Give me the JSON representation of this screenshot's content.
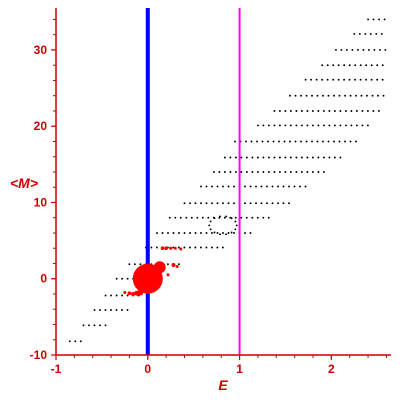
{
  "chart_data": {
    "type": "scatter",
    "title": "",
    "xlabel": "E",
    "ylabel": "<M>",
    "xlim": [
      -1,
      2.65
    ],
    "ylim": [
      -10,
      35.5
    ],
    "x_ticks": [
      -1,
      0,
      1,
      2
    ],
    "y_ticks": [
      -10,
      0,
      10,
      20,
      30
    ],
    "x_tick_labels": [
      "-1",
      "0",
      "1",
      "2"
    ],
    "y_tick_labels": [
      "-10",
      "0",
      "10",
      "20",
      "30"
    ],
    "grid": false,
    "legend": "none",
    "colors": {
      "axis": "#cc0000",
      "points": "#000000",
      "highlight": "#ff0000",
      "line_e0": "#0000ff",
      "line_e1": "#ff00ff"
    },
    "vertical_lines": [
      {
        "x": 0,
        "color": "#0000ff"
      },
      {
        "x": 1,
        "color": "#ff00ff"
      }
    ],
    "black_rows": [
      {
        "y": -8.2,
        "x": [
          -0.85,
          -0.72
        ]
      },
      {
        "y": -6.1,
        "x": [
          -0.7,
          -0.45
        ]
      },
      {
        "y": -4.1,
        "x": [
          -0.58,
          -0.2
        ]
      },
      {
        "y": -2.2,
        "x": [
          -0.46,
          -0.05
        ]
      },
      {
        "y": 0.0,
        "x": [
          -0.34,
          0.1
        ]
      },
      {
        "y": 1.9,
        "x": [
          -0.2,
          0.38
        ]
      },
      {
        "y": 4.1,
        "x": [
          -0.02,
          0.85
        ]
      },
      {
        "y": 6.0,
        "x": [
          0.1,
          1.15
        ]
      },
      {
        "y": 8.0,
        "x": [
          0.24,
          1.35
        ]
      },
      {
        "y": 9.9,
        "x": [
          0.4,
          1.55
        ]
      },
      {
        "y": 12.1,
        "x": [
          0.58,
          1.75
        ]
      },
      {
        "y": 14.0,
        "x": [
          0.72,
          1.95
        ]
      },
      {
        "y": 15.9,
        "x": [
          0.84,
          2.15
        ]
      },
      {
        "y": 18.0,
        "x": [
          0.95,
          2.3
        ]
      },
      {
        "y": 20.1,
        "x": [
          1.2,
          2.45
        ]
      },
      {
        "y": 22.0,
        "x": [
          1.38,
          2.55
        ]
      },
      {
        "y": 24.0,
        "x": [
          1.55,
          2.6
        ]
      },
      {
        "y": 26.1,
        "x": [
          1.72,
          2.6
        ]
      },
      {
        "y": 28.0,
        "x": [
          1.9,
          2.6
        ]
      },
      {
        "y": 30.0,
        "x": [
          2.05,
          2.6
        ]
      },
      {
        "y": 32.1,
        "x": [
          2.25,
          2.6
        ]
      },
      {
        "y": 34.0,
        "x": [
          2.4,
          2.6
        ]
      }
    ],
    "black_loop": {
      "cx": 0.82,
      "cy": 7.0,
      "rx": 0.15,
      "ry": 1.2
    },
    "red_points": [
      {
        "x": 0.0,
        "y": 0.0,
        "size": 15
      },
      {
        "x": 0.13,
        "y": 1.5,
        "size": 6
      },
      {
        "x": -0.08,
        "y": -1.8,
        "size": 3
      },
      {
        "x": -0.12,
        "y": -1.9,
        "size": 2.5
      },
      {
        "x": -0.16,
        "y": -2.0,
        "size": 2
      },
      {
        "x": -0.2,
        "y": -1.9,
        "size": 1.8
      },
      {
        "x": -0.25,
        "y": -1.8,
        "size": 1.5
      },
      {
        "x": 0.16,
        "y": 4.0,
        "size": 1.8
      },
      {
        "x": 0.2,
        "y": 4.0,
        "size": 1.8
      },
      {
        "x": 0.25,
        "y": 4.0,
        "size": 1.6
      },
      {
        "x": 0.3,
        "y": 4.0,
        "size": 1.5
      },
      {
        "x": 0.36,
        "y": 3.9,
        "size": 1.5
      },
      {
        "x": 0.28,
        "y": 1.8,
        "size": 2
      },
      {
        "x": 0.32,
        "y": 1.6,
        "size": 1.5
      },
      {
        "x": 0.22,
        "y": 0.5,
        "size": 1.5
      },
      {
        "x": -0.06,
        "y": 1.2,
        "size": 2
      },
      {
        "x": 0.08,
        "y": -0.9,
        "size": 2.5
      }
    ]
  }
}
